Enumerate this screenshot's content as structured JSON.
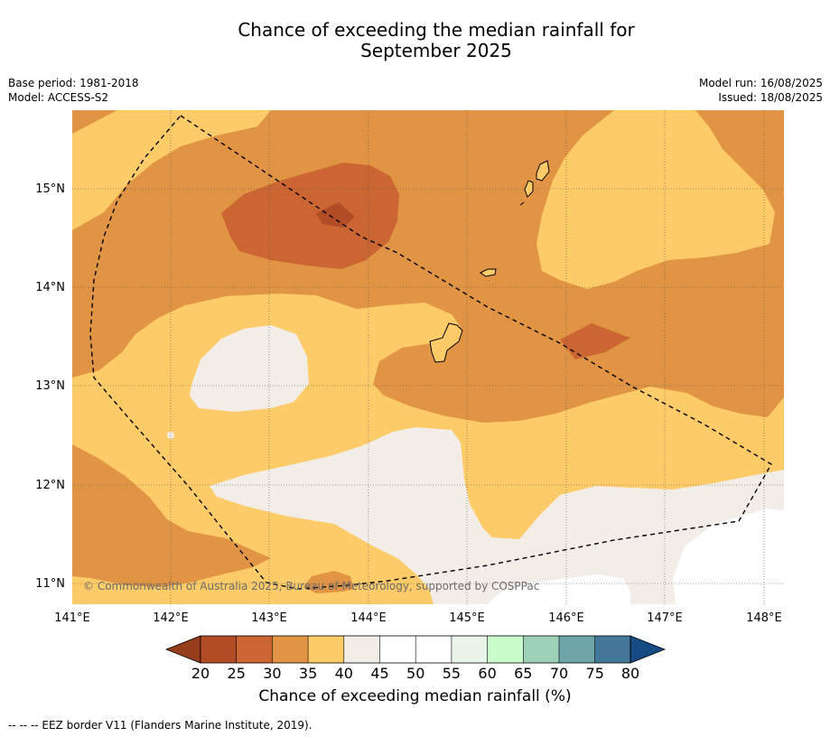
{
  "title_line1": "Chance of exceeding the median rainfall for",
  "title_line2": "September 2025",
  "meta": {
    "base_period": "Base period: 1981-2018",
    "model": "Model: ACCESS-S2",
    "model_run": "Model run: 16/08/2025",
    "issued": "Issued: 18/08/2025"
  },
  "map": {
    "lon_range": [
      141.0,
      148.2
    ],
    "lat_range": [
      10.8,
      15.8
    ],
    "lon_ticks": [
      "141°E",
      "142°E",
      "143°E",
      "144°E",
      "145°E",
      "146°E",
      "147°E",
      "148°E"
    ],
    "lat_ticks": [
      "15°N",
      "14°N",
      "13°N",
      "12°N",
      "11°N"
    ],
    "copyright": "© Commonwealth of Australia 2025, Bureau of Meteorology, supported by COSPPac",
    "colors": {
      "c20_25": "#b14c27",
      "c25_30": "#cb6532",
      "c30_35": "#e19443",
      "c35_40": "#fdcb67",
      "c40_45": "#f2ede6",
      "c45_55": "#ffffff"
    }
  },
  "colorbar": {
    "ticks": [
      "20",
      "25",
      "30",
      "35",
      "40",
      "45",
      "50",
      "55",
      "60",
      "65",
      "70",
      "75",
      "80"
    ],
    "colors": [
      "#b14c27",
      "#cb6532",
      "#e19443",
      "#fdcb67",
      "#f2ede6",
      "#ffffff",
      "#ffffff",
      "#eaf5ea",
      "#c9fbcb",
      "#9dd1b8",
      "#6ea5a8",
      "#43789b"
    ],
    "under_color": "#963d1c",
    "over_color": "#164c86",
    "label": "Chance of exceeding median rainfall (%)"
  },
  "footer": "--  --  -- EEZ border V11 (Flanders Marine Institute, 2019)."
}
